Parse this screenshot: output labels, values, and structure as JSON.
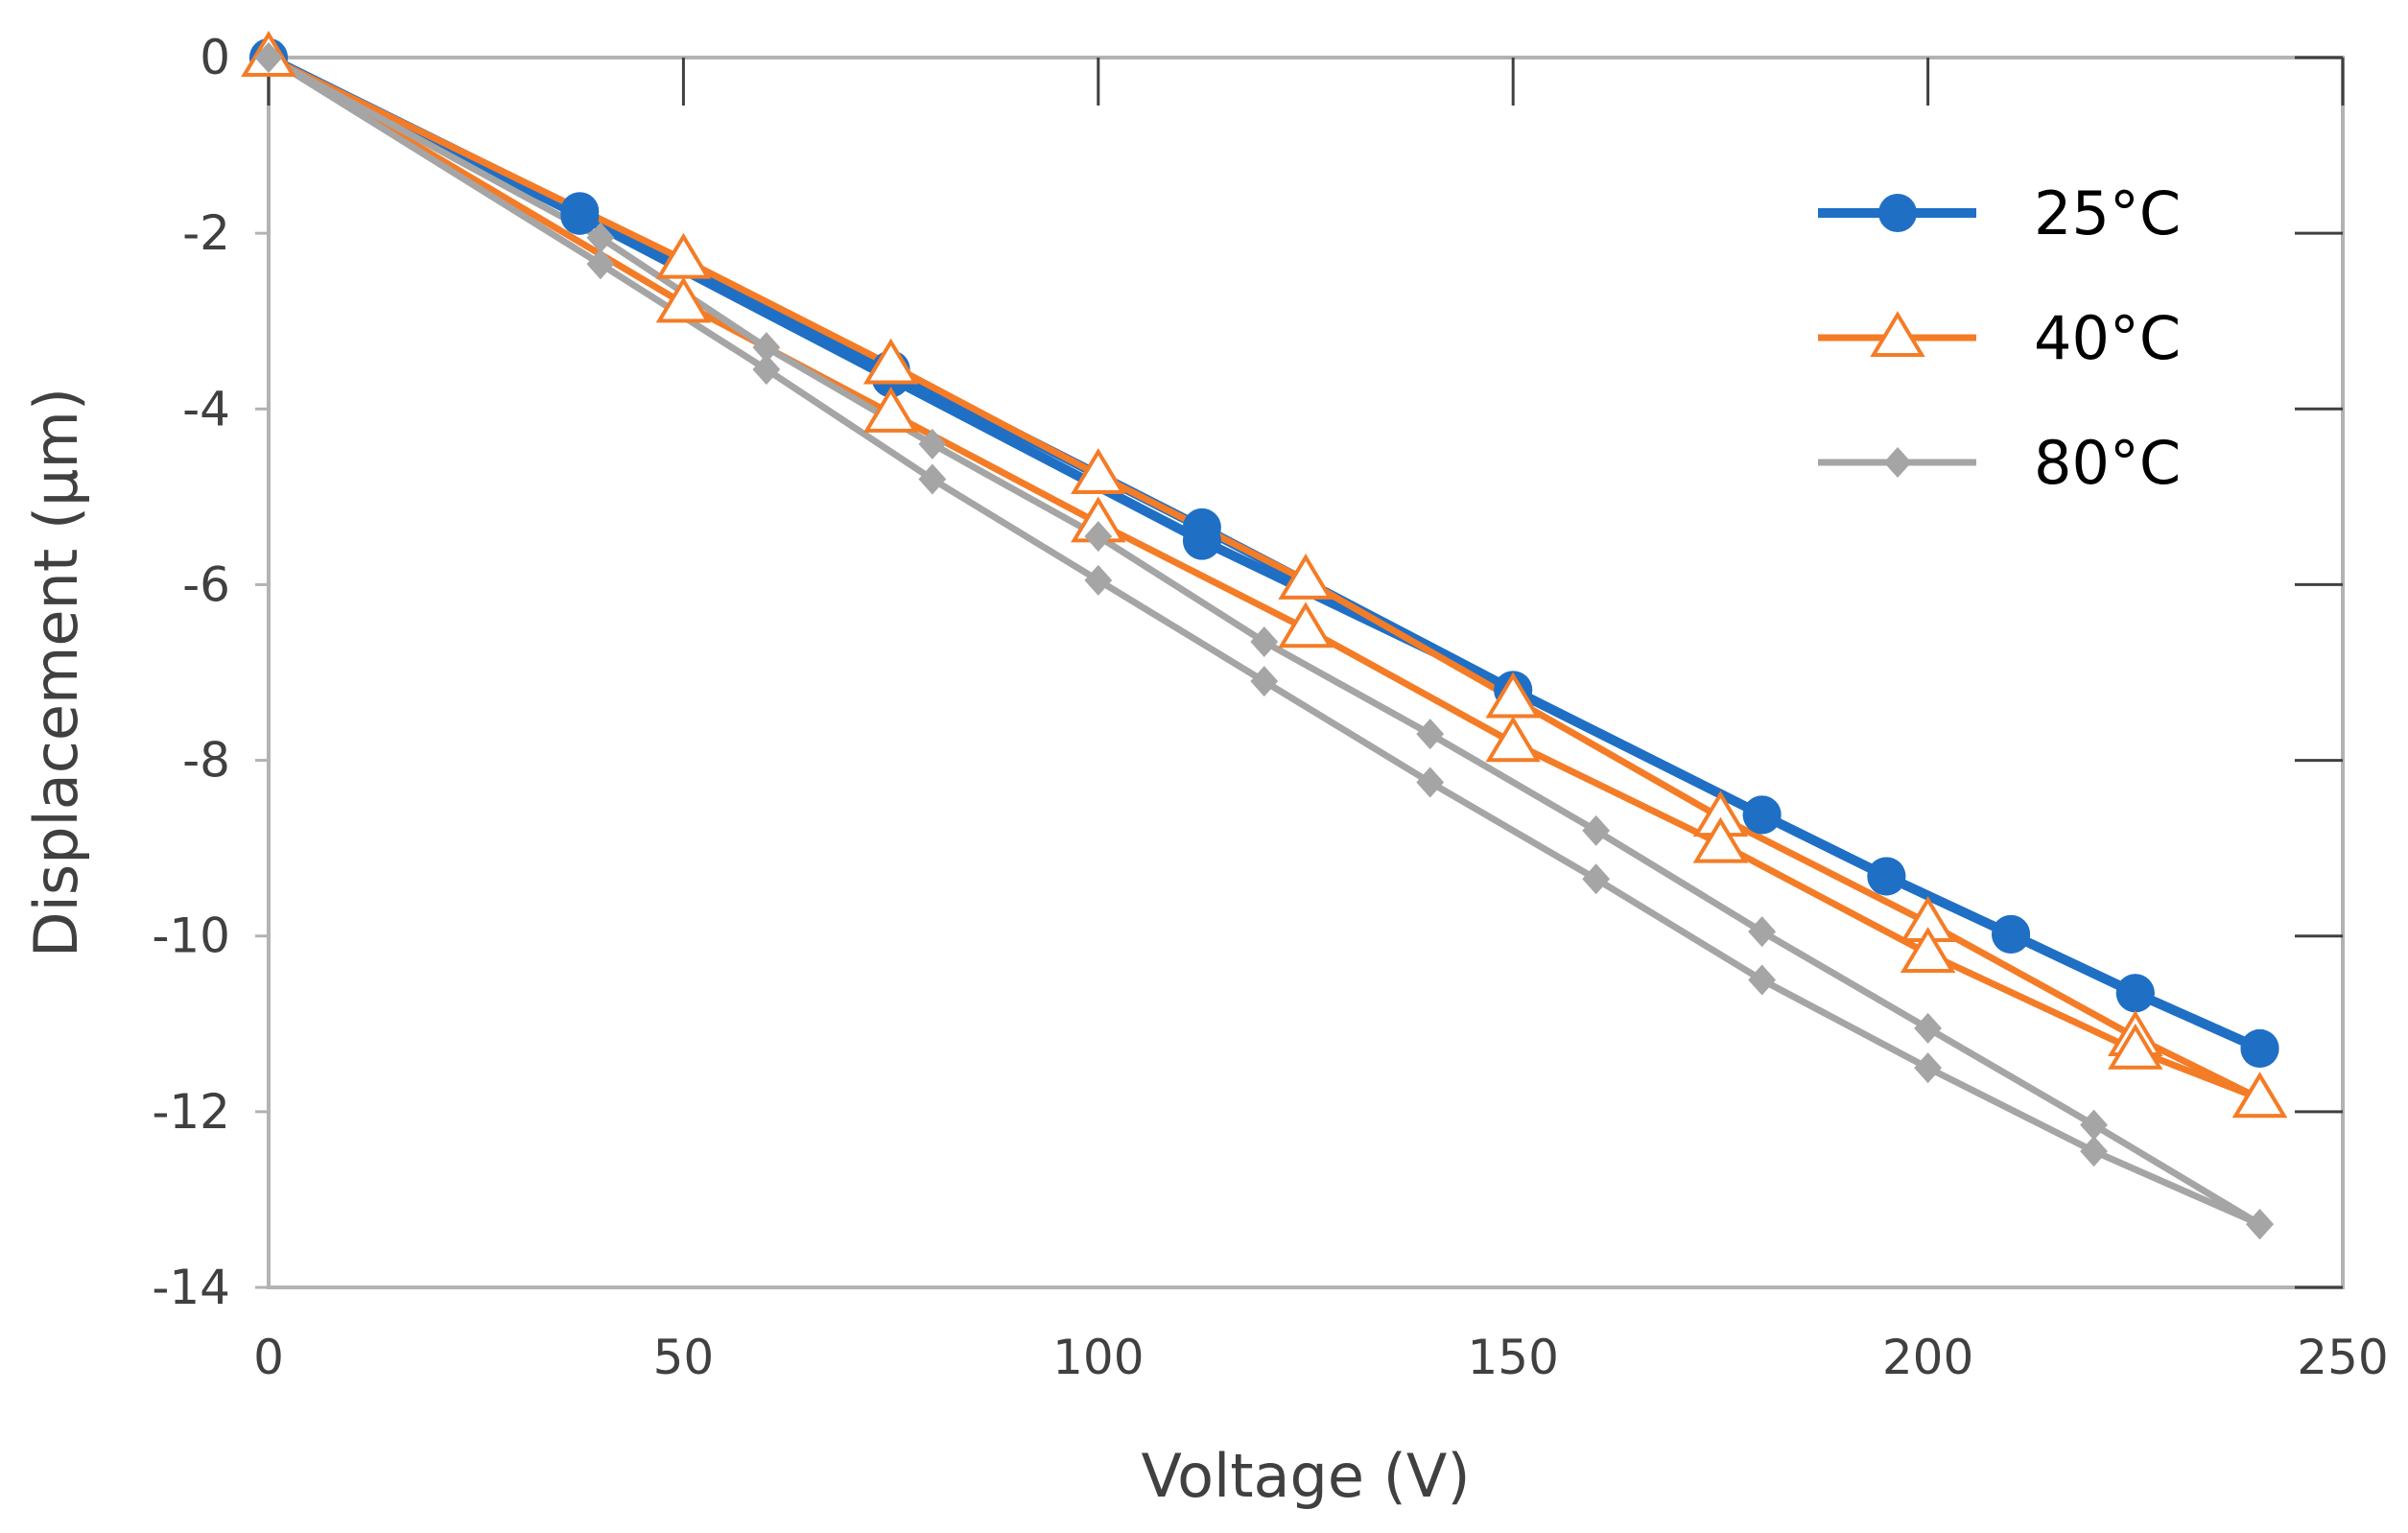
{
  "chart_data": {
    "type": "line",
    "title": "",
    "xlabel": "Voltage (V)",
    "ylabel": "Displacement (µm)",
    "xlim": [
      0,
      250
    ],
    "ylim": [
      -14,
      0
    ],
    "x_ticks": [
      0,
      50,
      100,
      150,
      200,
      250
    ],
    "y_ticks": [
      0,
      -2,
      -4,
      -6,
      -8,
      -10,
      -12,
      -14
    ],
    "x_tick_labels": [
      "0",
      "50",
      "100",
      "150",
      "200",
      "250"
    ],
    "y_tick_labels": [
      "0",
      "-2",
      "-4",
      "-6",
      "-8",
      "-10",
      "-12",
      "-14"
    ],
    "grid": false,
    "legend_position": "top-right",
    "series": [
      {
        "name": "25°C",
        "color": "#1f6fc5",
        "marker": "circle",
        "loops": [
          {
            "x": [
              0,
              37.5,
              75,
              112.5,
              150,
              180,
              195,
              210,
              225,
              240
            ],
            "y": [
              0,
              -1.75,
              -3.55,
              -5.35,
              -7.2,
              -8.62,
              -9.32,
              -9.98,
              -10.65,
              -11.28
            ]
          },
          {
            "x": [
              240,
              225,
              210,
              195,
              180,
              150,
              112.5,
              75,
              37.5,
              0
            ],
            "y": [
              -11.28,
              -10.65,
              -9.98,
              -9.32,
              -8.62,
              -7.2,
              -5.5,
              -3.65,
              -1.8,
              0
            ]
          }
        ]
      },
      {
        "name": "40°C",
        "color": "#f47c26",
        "marker": "triangle",
        "loops": [
          {
            "x": [
              0,
              50,
              75,
              100,
              125,
              150,
              175,
              200,
              225,
              240
            ],
            "y": [
              0,
              -2.3,
              -3.5,
              -4.75,
              -5.95,
              -7.3,
              -8.65,
              -9.85,
              -11.15,
              -11.85
            ]
          },
          {
            "x": [
              240,
              225,
              200,
              175,
              150,
              125,
              100,
              75,
              50,
              0
            ],
            "y": [
              -11.85,
              -11.3,
              -10.2,
              -8.95,
              -7.8,
              -6.5,
              -5.3,
              -4.05,
              -2.8,
              0
            ]
          }
        ]
      },
      {
        "name": "80°C",
        "color": "#a5a5a5",
        "marker": "diamond",
        "loops": [
          {
            "x": [
              0,
              40,
              60,
              80,
              100,
              120,
              140,
              160,
              180,
              200,
              220,
              240
            ],
            "y": [
              0,
              -2.05,
              -3.3,
              -4.4,
              -5.45,
              -6.65,
              -7.7,
              -8.8,
              -9.95,
              -11.05,
              -12.15,
              -13.28
            ]
          },
          {
            "x": [
              240,
              220,
              200,
              180,
              160,
              140,
              120,
              100,
              80,
              60,
              40,
              0
            ],
            "y": [
              -13.28,
              -12.45,
              -11.5,
              -10.5,
              -9.35,
              -8.25,
              -7.1,
              -5.95,
              -4.8,
              -3.55,
              -2.35,
              0
            ]
          }
        ]
      }
    ]
  }
}
